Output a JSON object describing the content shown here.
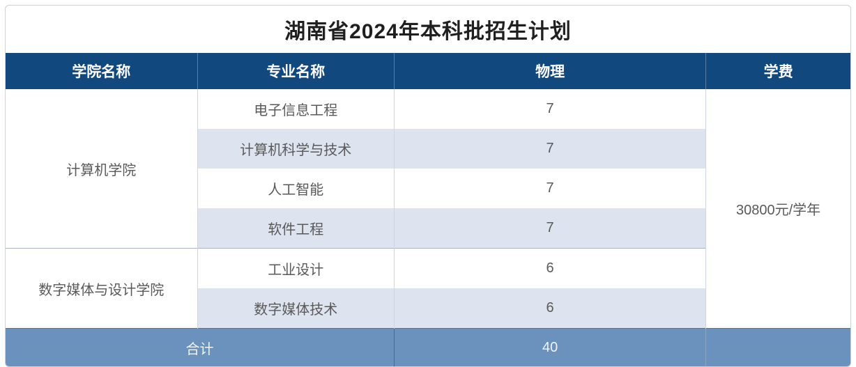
{
  "title": "湖南省2024年本科批招生计划",
  "colors": {
    "header_bg": "#11497e",
    "header_text": "#ffffff",
    "stripe_bg": "#dde3ef",
    "footer_bg": "#6b92bd",
    "footer_text": "#f0f4f9",
    "body_text": "#595959",
    "title_text": "#1f1f1f"
  },
  "table": {
    "columns": [
      "学院名称",
      "专业名称",
      "物理",
      "学费"
    ],
    "groups": [
      {
        "college": "计算机学院",
        "majors": [
          {
            "name": "电子信息工程",
            "physics": "7"
          },
          {
            "name": "计算机科学与技术",
            "physics": "7"
          },
          {
            "name": "人工智能",
            "physics": "7"
          },
          {
            "name": "软件工程",
            "physics": "7"
          }
        ]
      },
      {
        "college": "数字媒体与设计学院",
        "majors": [
          {
            "name": "工业设计",
            "physics": "6"
          },
          {
            "name": "数字媒体技术",
            "physics": "6"
          }
        ]
      }
    ],
    "tuition": "30800元/学年",
    "footer": {
      "label": "合计",
      "total": "40"
    }
  }
}
